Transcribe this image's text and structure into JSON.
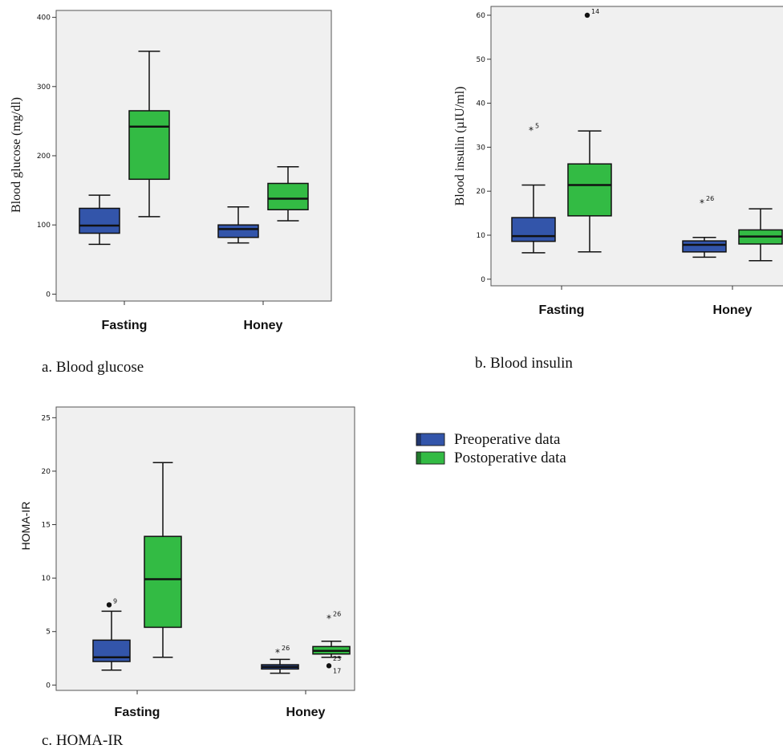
{
  "colors": {
    "pre": "#3355aa",
    "post": "#33bb44",
    "plot_bg": "#f0f0f0",
    "frame": "#555555"
  },
  "legend": {
    "items": [
      {
        "label": "Preoperative data",
        "color": "#3355aa"
      },
      {
        "label": "Postoperative data",
        "color": "#33bb44"
      }
    ]
  },
  "chart_data": [
    {
      "type": "box",
      "id": "a",
      "caption": "a. Blood glucose",
      "ylabel": "Blood glucose (mg/dl)",
      "ylim": [
        -10,
        410
      ],
      "yticks": [
        0,
        100,
        200,
        300,
        400
      ],
      "categories": [
        "Fasting",
        "Honey"
      ],
      "series": [
        {
          "name": "Preoperative data",
          "boxes": [
            {
              "min": 72,
              "q1": 88,
              "median": 99,
              "q3": 124,
              "max": 143,
              "outliers": []
            },
            {
              "min": 74,
              "q1": 82,
              "median": 94,
              "q3": 100,
              "max": 126,
              "outliers": []
            }
          ]
        },
        {
          "name": "Postoperative data",
          "boxes": [
            {
              "min": 112,
              "q1": 166,
              "median": 242,
              "q3": 265,
              "max": 351,
              "outliers": []
            },
            {
              "min": 106,
              "q1": 122,
              "median": 138,
              "q3": 160,
              "max": 184,
              "outliers": []
            }
          ]
        }
      ]
    },
    {
      "type": "box",
      "id": "b",
      "caption": "b. Blood insulin",
      "ylabel": "Blood insulin (µIU/ml)",
      "ylim": [
        -1.5,
        62
      ],
      "yticks": [
        0,
        10,
        20,
        30,
        40,
        50,
        60
      ],
      "categories": [
        "Fasting",
        "Honey"
      ],
      "series": [
        {
          "name": "Preoperative data",
          "boxes": [
            {
              "min": 6,
              "q1": 8.6,
              "median": 9.8,
              "q3": 14,
              "max": 21.4,
              "outliers": [
                {
                  "value": 34,
                  "label": "5",
                  "marker": "star"
                }
              ]
            },
            {
              "min": 5,
              "q1": 6.2,
              "median": 7.8,
              "q3": 8.7,
              "max": 9.5,
              "outliers": [
                {
                  "value": 17.5,
                  "label": "26",
                  "marker": "star"
                }
              ]
            }
          ]
        },
        {
          "name": "Postoperative data",
          "boxes": [
            {
              "min": 6.2,
              "q1": 14.4,
              "median": 21.4,
              "q3": 26.2,
              "max": 33.7,
              "outliers": [
                {
                  "value": 60,
                  "label": "14",
                  "marker": "dot"
                }
              ]
            },
            {
              "min": 4.2,
              "q1": 8,
              "median": 9.7,
              "q3": 11.2,
              "max": 16,
              "outliers": []
            }
          ]
        }
      ]
    },
    {
      "type": "box",
      "id": "c",
      "caption": "c. HOMA-IR",
      "ylabel": "HOMA-IR",
      "ylim": [
        -0.5,
        26
      ],
      "yticks": [
        0,
        5,
        10,
        15,
        20,
        25
      ],
      "categories": [
        "Fasting",
        "Honey"
      ],
      "series": [
        {
          "name": "Preoperative data",
          "boxes": [
            {
              "min": 1.4,
              "q1": 2.2,
              "median": 2.6,
              "q3": 4.2,
              "max": 6.9,
              "outliers": [
                {
                  "value": 7.5,
                  "label": "9",
                  "marker": "dot"
                }
              ]
            },
            {
              "min": 1.1,
              "q1": 1.5,
              "median": 1.7,
              "q3": 1.9,
              "max": 2.4,
              "outliers": [
                {
                  "value": 3.1,
                  "label": "26",
                  "marker": "star"
                }
              ]
            }
          ]
        },
        {
          "name": "Postoperative data",
          "boxes": [
            {
              "min": 2.6,
              "q1": 5.4,
              "median": 9.9,
              "q3": 13.9,
              "max": 20.8,
              "outliers": []
            },
            {
              "min": 2.6,
              "q1": 2.9,
              "median": 3.2,
              "q3": 3.6,
              "max": 4.1,
              "outliers": [
                {
                  "value": 6.3,
                  "label": "26",
                  "marker": "star"
                },
                {
                  "value": 2.5,
                  "label": "23",
                  "marker": "none"
                },
                {
                  "value": 1.8,
                  "label": "17",
                  "marker": "dot"
                }
              ]
            }
          ]
        }
      ]
    }
  ]
}
